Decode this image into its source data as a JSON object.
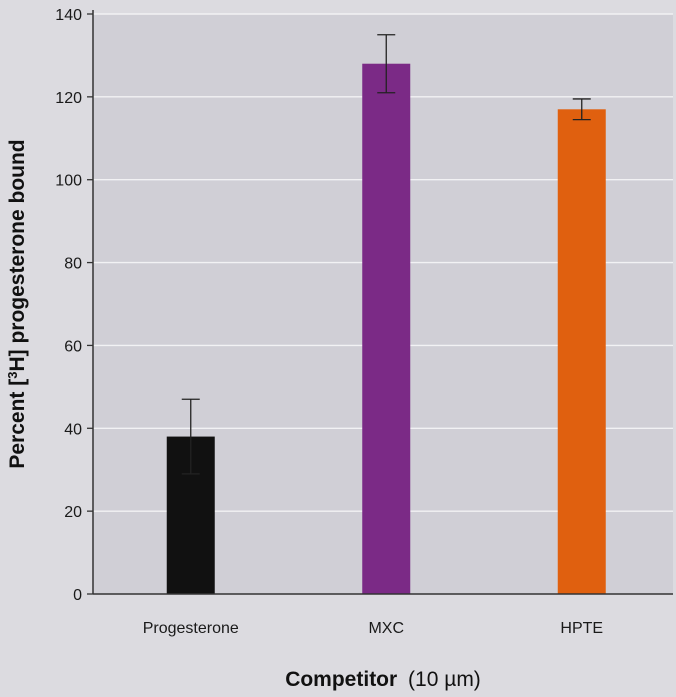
{
  "chart_data": {
    "type": "bar",
    "categories": [
      "Progesterone",
      "MXC",
      "HPTE"
    ],
    "values": [
      38,
      128,
      117
    ],
    "errors": [
      9,
      7,
      2.5
    ],
    "colors": [
      "#111111",
      "#7b2a86",
      "#e0600f"
    ],
    "ylim": [
      0,
      140
    ],
    "yticks": [
      0,
      20,
      40,
      60,
      80,
      100,
      120,
      140
    ],
    "grid": true,
    "xlabel_bold": "Competitor",
    "xlabel_rest": "(10 µm)",
    "ylabel_pre": "Percent [",
    "ylabel_sup": "3",
    "ylabel_post": "H] progesterone bound"
  }
}
